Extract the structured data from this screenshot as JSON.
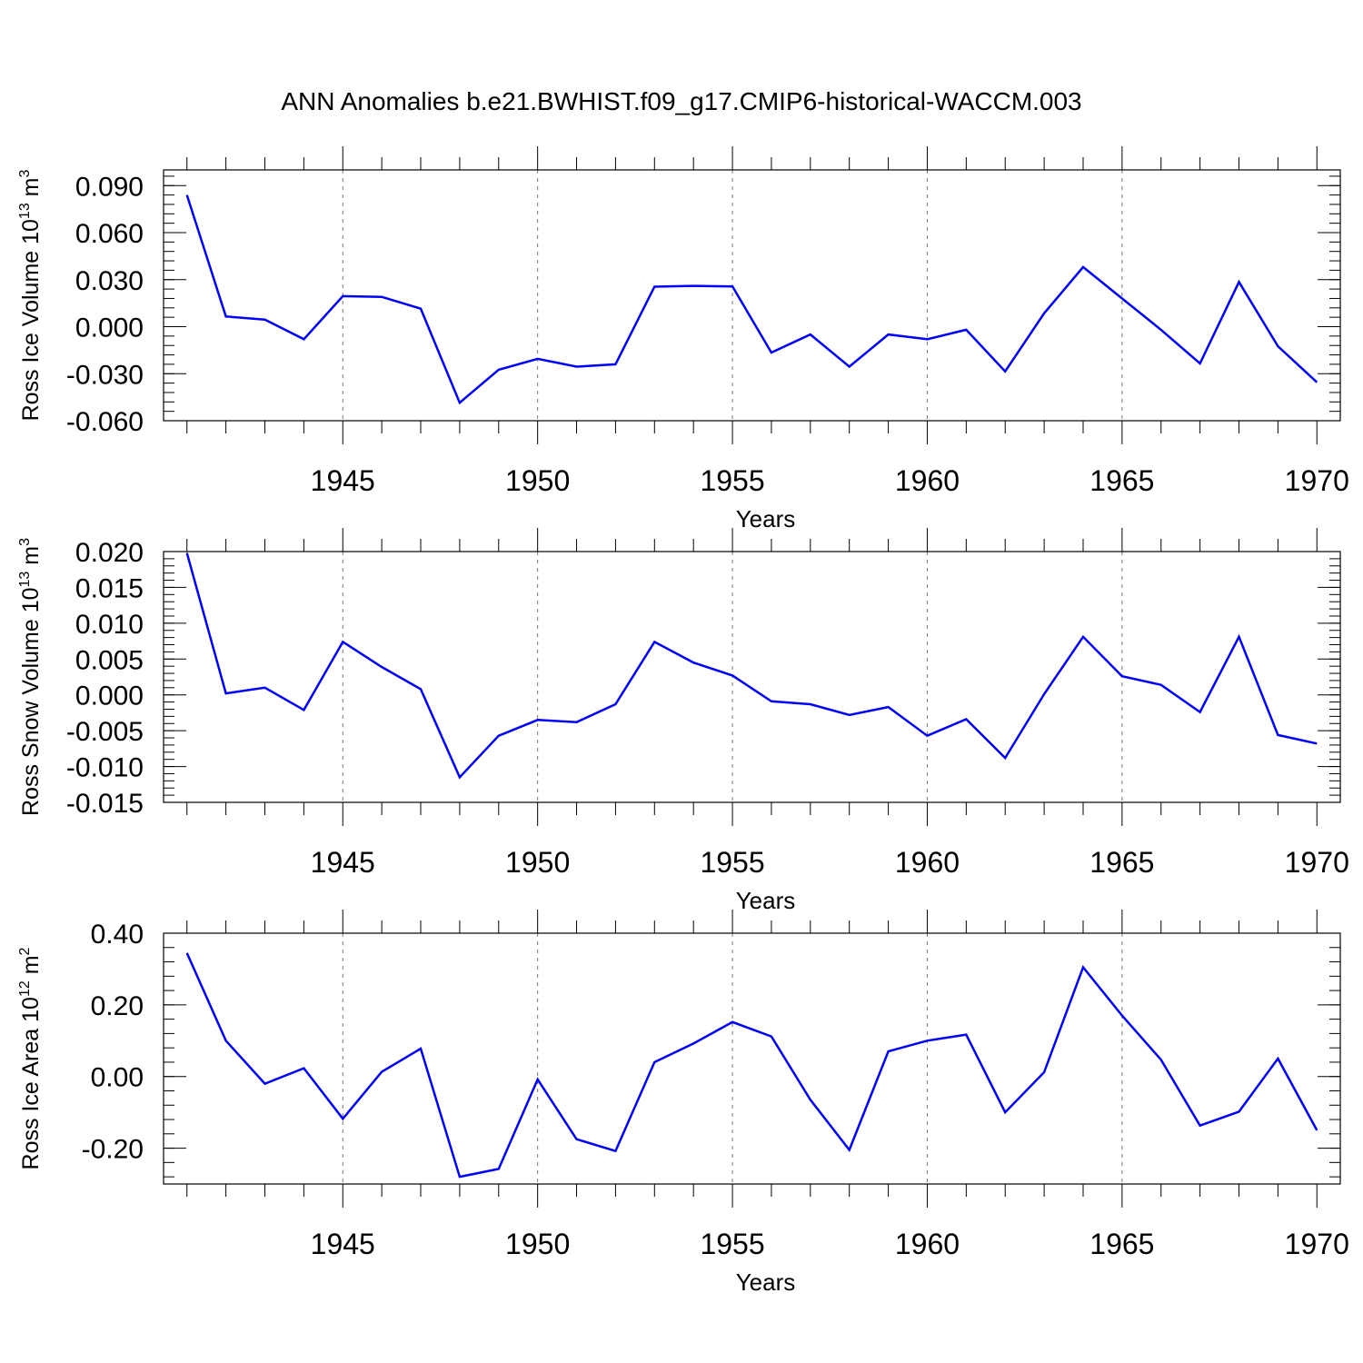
{
  "title": "ANN Anomalies b.e21.BWHIST.f09_g17.CMIP6-historical-WACCM.003",
  "chart_data": [
    {
      "type": "line",
      "title": "ANN Anomalies b.e21.BWHIST.f09_g17.CMIP6-historical-WACCM.003",
      "xlabel": "Years",
      "ylabel": "Ross Ice Volume 10",
      "ylabel_exp": "13",
      "ylabel_unit": " m",
      "ylabel_unit_exp": "3",
      "xlim": [
        1941,
        1970
      ],
      "ylim": [
        -0.06,
        0.1
      ],
      "xticks": [
        1945,
        1950,
        1955,
        1960,
        1965,
        1970
      ],
      "yticks": [
        -0.06,
        -0.03,
        0.0,
        0.03,
        0.06,
        0.09
      ],
      "ytick_labels": [
        "-0.060",
        "-0.030",
        "0.000",
        "0.030",
        "0.060",
        "0.090"
      ],
      "grid": "vertical dashed at major x ticks",
      "color": "#0000ff",
      "x": [
        1941,
        1942,
        1943,
        1944,
        1945,
        1946,
        1947,
        1948,
        1949,
        1950,
        1951,
        1952,
        1953,
        1954,
        1955,
        1956,
        1957,
        1958,
        1959,
        1960,
        1961,
        1962,
        1963,
        1964,
        1965,
        1966,
        1967,
        1968,
        1969,
        1970
      ],
      "values": [
        0.084,
        0.0065,
        0.0045,
        -0.008,
        0.0195,
        0.019,
        0.0115,
        -0.0485,
        -0.0275,
        -0.0205,
        -0.0255,
        -0.024,
        0.0255,
        0.026,
        0.0257,
        -0.0165,
        -0.005,
        -0.0255,
        -0.005,
        -0.008,
        -0.002,
        -0.0285,
        0.0085,
        0.038,
        0.018,
        -0.002,
        -0.0235,
        0.0285,
        -0.0125,
        -0.0355
      ]
    },
    {
      "type": "line",
      "xlabel": "Years",
      "ylabel": "Ross Snow Volume 10",
      "ylabel_exp": "13",
      "ylabel_unit": " m",
      "ylabel_unit_exp": "3",
      "xlim": [
        1941,
        1970
      ],
      "ylim": [
        -0.015,
        0.02
      ],
      "xticks": [
        1945,
        1950,
        1955,
        1960,
        1965,
        1970
      ],
      "yticks": [
        -0.015,
        -0.01,
        -0.005,
        0.0,
        0.005,
        0.01,
        0.015,
        0.02
      ],
      "ytick_labels": [
        "-0.015",
        "-0.010",
        "-0.005",
        "0.000",
        "0.005",
        "0.010",
        "0.015",
        "0.020"
      ],
      "grid": "vertical dashed at major x ticks",
      "color": "#0000ff",
      "x": [
        1941,
        1942,
        1943,
        1944,
        1945,
        1946,
        1947,
        1948,
        1949,
        1950,
        1951,
        1952,
        1953,
        1954,
        1955,
        1956,
        1957,
        1958,
        1959,
        1960,
        1961,
        1962,
        1963,
        1964,
        1965,
        1966,
        1967,
        1968,
        1969,
        1970
      ],
      "values": [
        0.0198,
        0.0002,
        0.001,
        -0.0021,
        0.0074,
        0.0039,
        0.0008,
        -0.0115,
        -0.0057,
        -0.0035,
        -0.0038,
        -0.0013,
        0.0074,
        0.0045,
        0.0027,
        -0.0009,
        -0.0013,
        -0.0028,
        -0.0017,
        -0.0057,
        -0.0034,
        -0.0088,
        0.0001,
        0.0081,
        0.0026,
        0.0014,
        -0.0024,
        0.0081,
        -0.0056,
        -0.0068
      ]
    },
    {
      "type": "line",
      "xlabel": "Years",
      "ylabel": "Ross Ice Area 10",
      "ylabel_exp": "12",
      "ylabel_unit": " m",
      "ylabel_unit_exp": "2",
      "xlim": [
        1941,
        1970
      ],
      "ylim": [
        -0.3,
        0.4
      ],
      "xticks": [
        1945,
        1950,
        1955,
        1960,
        1965,
        1970
      ],
      "yticks": [
        -0.2,
        0.0,
        0.2,
        0.4
      ],
      "ytick_labels": [
        "-0.20",
        "0.00",
        "0.20",
        "0.40"
      ],
      "grid": "vertical dashed at major x ticks",
      "color": "#0000ff",
      "x": [
        1941,
        1942,
        1943,
        1944,
        1945,
        1946,
        1947,
        1948,
        1949,
        1950,
        1951,
        1952,
        1953,
        1954,
        1955,
        1956,
        1957,
        1958,
        1959,
        1960,
        1961,
        1962,
        1963,
        1964,
        1965,
        1966,
        1967,
        1968,
        1969,
        1970
      ],
      "values": [
        0.345,
        0.1,
        -0.02,
        0.023,
        -0.118,
        0.013,
        0.078,
        -0.28,
        -0.258,
        -0.008,
        -0.175,
        -0.208,
        0.04,
        0.092,
        0.152,
        0.112,
        -0.065,
        -0.205,
        0.07,
        0.1,
        0.117,
        -0.1,
        0.012,
        0.305,
        0.17,
        0.047,
        -0.137,
        -0.098,
        0.05,
        -0.15
      ]
    }
  ]
}
